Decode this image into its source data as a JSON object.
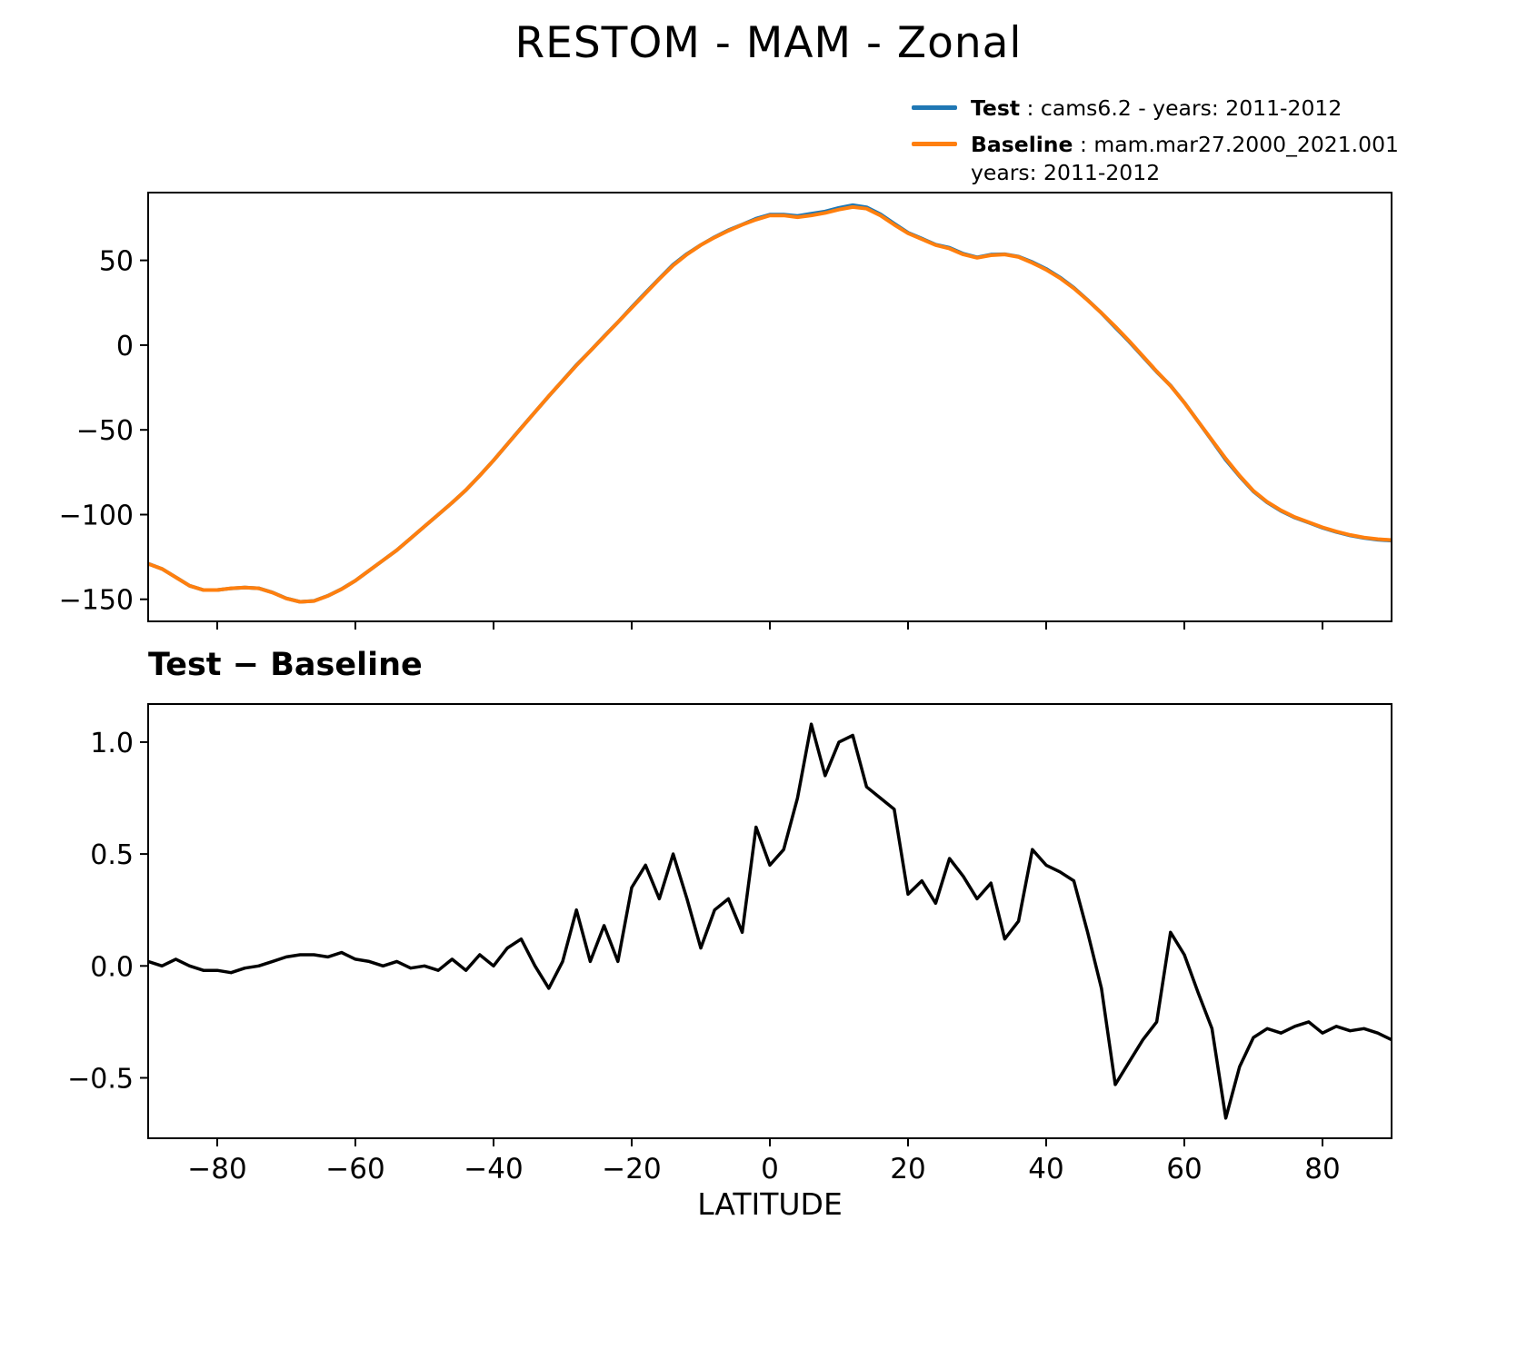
{
  "title": "RESTOM - MAM - Zonal",
  "diff_title": "Test − Baseline",
  "xlabel": "LATITUDE",
  "colors": {
    "test": "#1f77b4",
    "baseline": "#ff7f0e",
    "diff": "#000000",
    "axes": "#000000"
  },
  "legend": {
    "position": "top-right",
    "items": [
      {
        "name": "Test",
        "line1": " : cams6.2 - years: 2011-2012",
        "line2": "",
        "color": "#1f77b4"
      },
      {
        "name": "Baseline",
        "line1": " : mam.mar27.2000_2021.001",
        "line2": "years: 2011-2012",
        "color": "#ff7f0e"
      }
    ]
  },
  "chart_data": [
    {
      "type": "line",
      "panel": "main",
      "title": "RESTOM - MAM - Zonal",
      "xlabel": "",
      "ylabel": "",
      "legend_position": "top-right",
      "grid": false,
      "xlim": [
        -90,
        90
      ],
      "ylim": [
        -163,
        90
      ],
      "xticks": [
        -80,
        -60,
        -40,
        -20,
        0,
        20,
        40,
        60,
        80
      ],
      "xtick_labels": [],
      "yticks": [
        50,
        0,
        -50,
        -100,
        -150
      ],
      "ytick_labels": [
        "50",
        "0",
        "−50",
        "−100",
        "−150"
      ],
      "x": [
        -90,
        -88,
        -86,
        -84,
        -82,
        -80,
        -78,
        -76,
        -74,
        -72,
        -70,
        -68,
        -66,
        -64,
        -62,
        -60,
        -58,
        -56,
        -54,
        -52,
        -50,
        -48,
        -46,
        -44,
        -42,
        -40,
        -38,
        -36,
        -34,
        -32,
        -30,
        -28,
        -26,
        -24,
        -22,
        -20,
        -18,
        -16,
        -14,
        -12,
        -10,
        -8,
        -6,
        -4,
        -2,
        0,
        2,
        4,
        6,
        8,
        10,
        12,
        14,
        16,
        18,
        20,
        22,
        24,
        26,
        28,
        30,
        32,
        34,
        36,
        38,
        40,
        42,
        44,
        46,
        48,
        50,
        52,
        54,
        56,
        58,
        60,
        62,
        64,
        66,
        68,
        70,
        72,
        74,
        76,
        78,
        80,
        82,
        84,
        86,
        88,
        90
      ],
      "series": [
        {
          "name": "Test",
          "label": "Test : cams6.2 - years: 2011-2012",
          "color": "#1f77b4",
          "width": 4,
          "values": [
            -128.98,
            -132,
            -136.97,
            -142,
            -144.52,
            -144.52,
            -143.53,
            -143.01,
            -143.5,
            -145.98,
            -149.46,
            -151.45,
            -150.95,
            -147.96,
            -143.94,
            -138.97,
            -132.98,
            -127,
            -120.98,
            -114.01,
            -107,
            -100.02,
            -92.97,
            -85.52,
            -76.95,
            -68,
            -58.42,
            -48.88,
            -39.5,
            -30.1,
            -20.98,
            -11.75,
            -3.48,
            5.18,
            13.52,
            22.35,
            30.95,
            39.3,
            47.5,
            53.8,
            59.08,
            63.75,
            67.8,
            71.15,
            74.62,
            76.95,
            77.02,
            76.25,
            77.58,
            78.85,
            81,
            82.53,
            81.3,
            77.25,
            71.7,
            66.32,
            62.88,
            59.28,
            57.48,
            53.9,
            51.8,
            53.37,
            53.62,
            52.2,
            49.02,
            44.95,
            39.92,
            33.88,
            26.65,
            18.9,
            10.47,
            2.07,
            -6.83,
            -15.75,
            -23.85,
            -33.95,
            -45.12,
            -56.28,
            -67.68,
            -77.45,
            -86.32,
            -92.78,
            -97.8,
            -101.77,
            -104.75,
            -107.8,
            -110.27,
            -112.29,
            -113.78,
            -114.8,
            -115.33
          ]
        },
        {
          "name": "Baseline",
          "label": "Baseline : mam.mar27.2000_2021.001 years: 2011-2012",
          "color": "#ff7f0e",
          "width": 4,
          "values": [
            -129,
            -132,
            -137,
            -142,
            -144.5,
            -144.5,
            -143.5,
            -143,
            -143.5,
            -146,
            -149.5,
            -151.5,
            -151,
            -148,
            -144,
            -139,
            -133,
            -127,
            -121,
            -114,
            -107,
            -100,
            -93,
            -85.5,
            -77,
            -68,
            -58.5,
            -49,
            -39.5,
            -30,
            -21,
            -12,
            -3.5,
            5,
            13.5,
            22,
            30.5,
            39,
            47,
            53.5,
            59,
            63.5,
            67.5,
            71,
            74,
            76.5,
            76.5,
            75.5,
            76.5,
            78,
            80,
            81.5,
            80.5,
            76.5,
            71,
            66,
            62.5,
            59,
            57,
            53.5,
            51.5,
            53,
            53.5,
            52,
            48.5,
            44.5,
            39.5,
            33.5,
            26.5,
            19,
            11,
            2.5,
            -6.5,
            -15.5,
            -24,
            -34,
            -45,
            -56,
            -67,
            -77,
            -86,
            -92.5,
            -97.5,
            -101.5,
            -104.5,
            -107.5,
            -110,
            -112,
            -113.5,
            -114.5,
            -115
          ]
        }
      ]
    },
    {
      "type": "line",
      "panel": "difference",
      "title": "Test − Baseline",
      "xlabel": "LATITUDE",
      "ylabel": "",
      "grid": false,
      "xlim": [
        -90,
        90
      ],
      "ylim": [
        -0.77,
        1.17
      ],
      "xticks": [
        -80,
        -60,
        -40,
        -20,
        0,
        20,
        40,
        60,
        80
      ],
      "xtick_labels": [
        "−80",
        "−60",
        "−40",
        "−20",
        "0",
        "20",
        "40",
        "60",
        "80"
      ],
      "yticks": [
        1.0,
        0.5,
        0.0,
        -0.5
      ],
      "ytick_labels": [
        "1.0",
        "0.5",
        "0.0",
        "−0.5"
      ],
      "x": [
        -90,
        -88,
        -86,
        -84,
        -82,
        -80,
        -78,
        -76,
        -74,
        -72,
        -70,
        -68,
        -66,
        -64,
        -62,
        -60,
        -58,
        -56,
        -54,
        -52,
        -50,
        -48,
        -46,
        -44,
        -42,
        -40,
        -38,
        -36,
        -34,
        -32,
        -30,
        -28,
        -26,
        -24,
        -22,
        -20,
        -18,
        -16,
        -14,
        -12,
        -10,
        -8,
        -6,
        -4,
        -2,
        0,
        2,
        4,
        6,
        8,
        10,
        12,
        14,
        16,
        18,
        20,
        22,
        24,
        26,
        28,
        30,
        32,
        34,
        36,
        38,
        40,
        42,
        44,
        46,
        48,
        50,
        52,
        54,
        56,
        58,
        60,
        62,
        64,
        66,
        68,
        70,
        72,
        74,
        76,
        78,
        80,
        82,
        84,
        86,
        88,
        90
      ],
      "series": [
        {
          "name": "Test minus Baseline",
          "color": "#000000",
          "width": 3.5,
          "values": [
            0.02,
            0,
            0.03,
            0,
            -0.02,
            -0.02,
            -0.03,
            -0.01,
            0,
            0.02,
            0.04,
            0.05,
            0.05,
            0.04,
            0.06,
            0.03,
            0.02,
            0,
            0.02,
            -0.01,
            0,
            -0.02,
            0.03,
            -0.02,
            0.05,
            0,
            0.08,
            0.12,
            0,
            -0.1,
            0.02,
            0.25,
            0.02,
            0.18,
            0.02,
            0.35,
            0.45,
            0.3,
            0.5,
            0.3,
            0.08,
            0.25,
            0.3,
            0.15,
            0.62,
            0.45,
            0.52,
            0.75,
            1.08,
            0.85,
            1,
            1.03,
            0.8,
            0.75,
            0.7,
            0.32,
            0.38,
            0.28,
            0.48,
            0.4,
            0.3,
            0.37,
            0.12,
            0.2,
            0.52,
            0.45,
            0.42,
            0.38,
            0.15,
            -0.1,
            -0.53,
            -0.43,
            -0.33,
            -0.25,
            0.15,
            0.05,
            -0.12,
            -0.28,
            -0.68,
            -0.45,
            -0.32,
            -0.28,
            -0.3,
            -0.27,
            -0.25,
            -0.3,
            -0.27,
            -0.29,
            -0.28,
            -0.3,
            -0.33
          ]
        }
      ]
    }
  ]
}
